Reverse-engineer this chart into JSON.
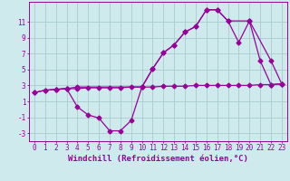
{
  "background_color": "#ceeaec",
  "grid_color": "#aacccc",
  "line_color": "#990099",
  "xlabel": "Windchill (Refroidissement éolien,°C)",
  "xlim": [
    -0.5,
    23.5
  ],
  "ylim": [
    -4.0,
    13.5
  ],
  "xticks": [
    0,
    1,
    2,
    3,
    4,
    5,
    6,
    7,
    8,
    9,
    10,
    11,
    12,
    13,
    14,
    15,
    16,
    17,
    18,
    19,
    20,
    21,
    22,
    23
  ],
  "yticks": [
    -3,
    -1,
    1,
    3,
    5,
    7,
    9,
    11
  ],
  "line1_x": [
    0,
    1,
    2,
    3,
    4,
    5,
    6,
    7,
    8,
    9,
    10,
    11,
    12,
    13,
    14,
    15,
    16,
    17,
    18,
    19,
    20,
    21,
    22,
    23
  ],
  "line1_y": [
    2.1,
    2.4,
    2.5,
    2.6,
    2.6,
    2.7,
    2.7,
    2.7,
    2.7,
    2.8,
    2.8,
    2.8,
    2.9,
    2.9,
    2.9,
    3.0,
    3.0,
    3.0,
    3.0,
    3.0,
    3.0,
    3.1,
    3.1,
    3.2
  ],
  "line2_x": [
    0,
    1,
    2,
    3,
    4,
    5,
    6,
    7,
    8,
    9,
    10,
    11,
    12,
    13,
    14,
    15,
    16,
    17,
    18,
    19,
    20,
    21,
    22,
    23
  ],
  "line2_y": [
    2.1,
    2.4,
    2.5,
    2.6,
    0.3,
    -0.7,
    -1.1,
    -2.7,
    -2.7,
    -1.4,
    2.8,
    5.1,
    7.1,
    8.1,
    9.7,
    10.4,
    12.5,
    12.5,
    11.1,
    8.4,
    11.1,
    6.1,
    3.1,
    3.2
  ],
  "line3_x": [
    2,
    3,
    4,
    10,
    11,
    12,
    13,
    14,
    15,
    16,
    17,
    18,
    20,
    22,
    23
  ],
  "line3_y": [
    2.5,
    2.6,
    2.8,
    2.8,
    5.1,
    7.1,
    8.1,
    9.7,
    10.4,
    12.5,
    12.5,
    11.1,
    11.1,
    6.1,
    3.2
  ],
  "tick_fontsize": 5.5,
  "label_fontsize": 6.5
}
